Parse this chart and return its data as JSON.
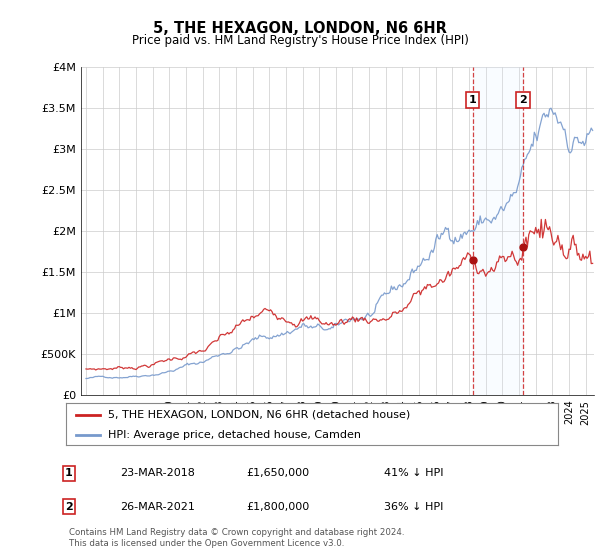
{
  "title": "5, THE HEXAGON, LONDON, N6 6HR",
  "subtitle": "Price paid vs. HM Land Registry's House Price Index (HPI)",
  "legend_entries": [
    "5, THE HEXAGON, LONDON, N6 6HR (detached house)",
    "HPI: Average price, detached house, Camden"
  ],
  "annotation1": {
    "label": "1",
    "date": "23-MAR-2018",
    "price": "£1,650,000",
    "pct": "41% ↓ HPI",
    "x_year": 2018.22
  },
  "annotation2": {
    "label": "2",
    "date": "26-MAR-2021",
    "price": "£1,800,000",
    "pct": "36% ↓ HPI",
    "x_year": 2021.23
  },
  "footer": "Contains HM Land Registry data © Crown copyright and database right 2024.\nThis data is licensed under the Open Government Licence v3.0.",
  "line_color_property": "#cc2222",
  "line_color_hpi": "#7799cc",
  "dot_color_property": "#aa1111",
  "background_color": "#ffffff",
  "grid_color": "#cccccc",
  "ylim": [
    0,
    4000000
  ],
  "yticks": [
    0,
    500000,
    1000000,
    1500000,
    2000000,
    2500000,
    3000000,
    3500000,
    4000000
  ],
  "ytick_labels": [
    "£0",
    "£500K",
    "£1M",
    "£1.5M",
    "£2M",
    "£2.5M",
    "£3M",
    "£3.5M",
    "£4M"
  ],
  "xlim_start": 1994.7,
  "xlim_end": 2025.5,
  "span_color": "#ddeeff",
  "vline_color": "#cc2222"
}
